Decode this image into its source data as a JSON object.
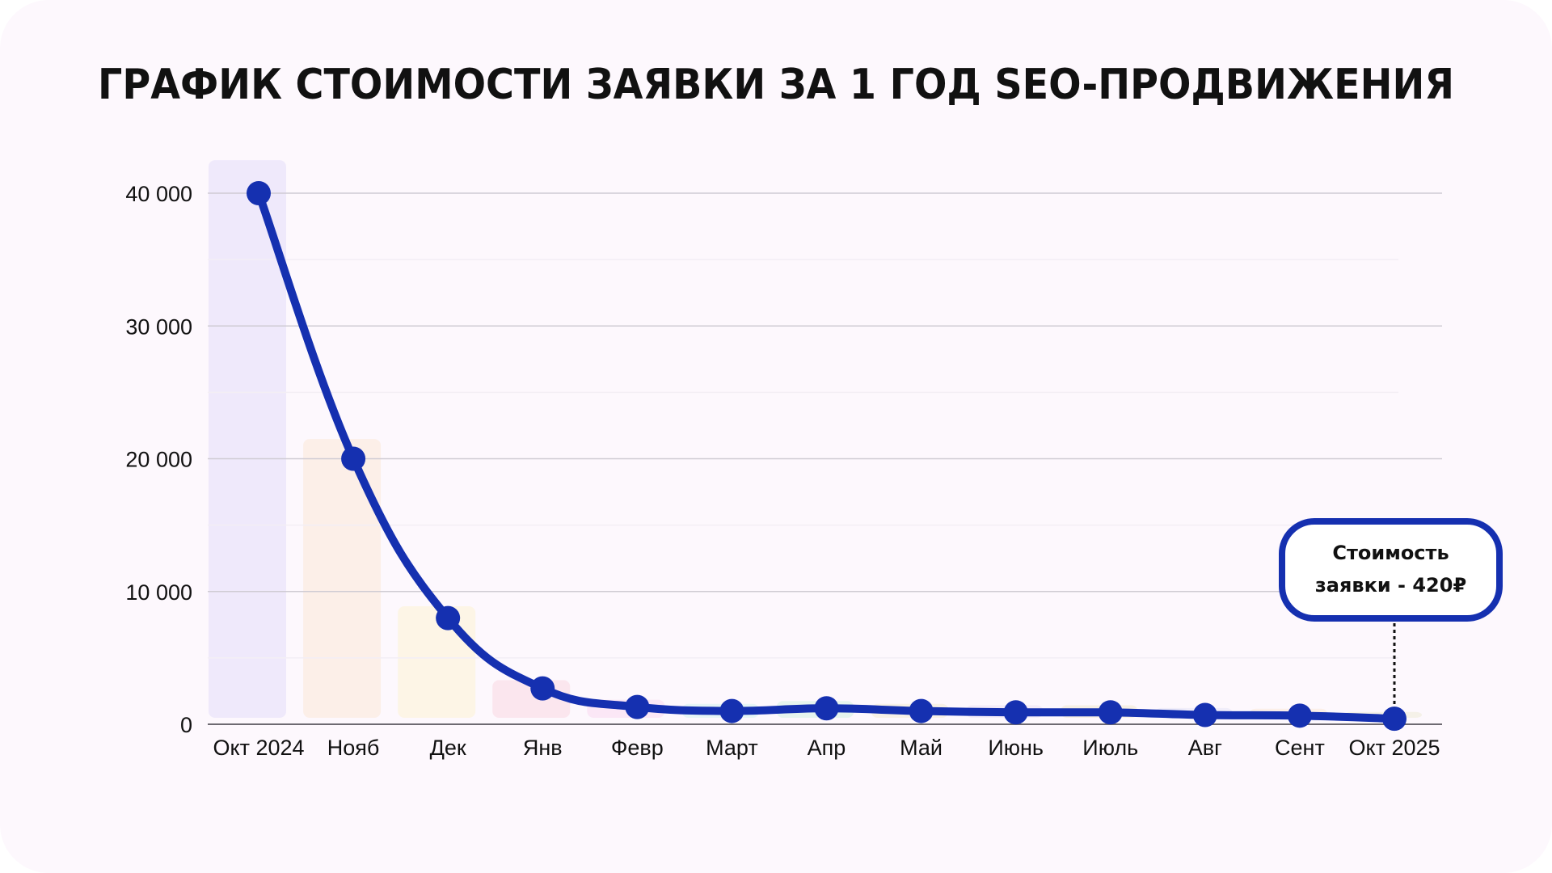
{
  "chart_data": {
    "type": "line",
    "title": "ГРАФИК СТОИМОСТИ ЗАЯВКИ ЗА 1 ГОД SEO-ПРОДВИЖЕНИЯ",
    "xlabel": "",
    "ylabel": "",
    "categories": [
      "Окт 2024",
      "Нояб",
      "Дек",
      "Янв",
      "Февр",
      "Март",
      "Апр",
      "Май",
      "Июнь",
      "Июль",
      "Авг",
      "Сент",
      "Окт 2025"
    ],
    "series": [
      {
        "name": "Стоимость заявки",
        "values": [
          40000,
          20000,
          8000,
          2700,
          1300,
          1000,
          1200,
          1000,
          900,
          900,
          700,
          650,
          420
        ],
        "color": "#1530b0"
      }
    ],
    "ylim": [
      0,
      40000
    ],
    "yticks": [
      0,
      10000,
      20000,
      30000,
      40000
    ],
    "ytick_labels": [
      "0",
      "10 000",
      "20 000",
      "30 000",
      "40 000"
    ],
    "grid": true,
    "legend": "none",
    "bar_colors": [
      "#efe9fb",
      "#fcefe8",
      "#fdf5e6",
      "#fbe6ee",
      "#fbe7f6",
      "#e6f5f5",
      "#e6f4ee",
      "#f7f1e6",
      "#f4ecf8",
      "#f6efe4",
      "#f1eefa",
      "#fcefe8",
      "#f5f1e8"
    ],
    "annotation": {
      "line1": "Стоимость",
      "line2": "заявки - 420₽",
      "target": "Окт 2025"
    }
  }
}
